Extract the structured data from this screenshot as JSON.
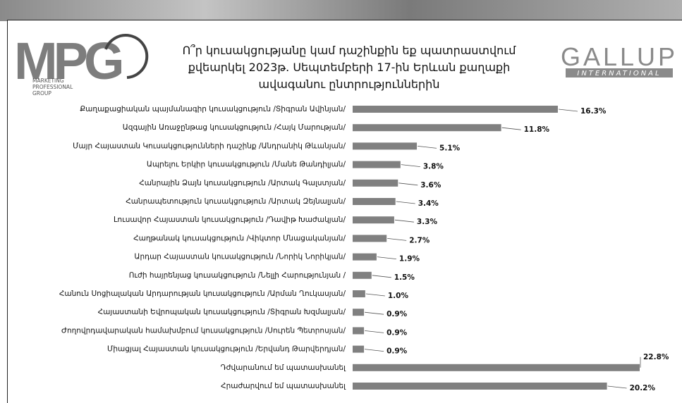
{
  "chart_data": {
    "type": "bar",
    "orientation": "horizontal",
    "title": "Ո՞ր կուսակցությանը կամ դաշինքին եք պատրաստվում քվեարկել 2023թ. Սեպտեմբերի 17-ին Երևան քաղաքի ավագանու ընտրություններին",
    "categories": [
      "Քաղաքացիական պայմանագիր կուսակցություն /Տիգրան Ավինյան/",
      "Ազգային Առաջընթաց կուսակցություն  /Հայկ Մարության/",
      "Մայր Հայաստան Կուսակցությունների դաշինք /Անդրանիկ Թևանյան/",
      "Ապրելու Երկիր կուսակցություն /Մանե Թանդիլյան/",
      "Հանրային Ձայն կուսակցություն /Արտակ Գալստյան/",
      "Հանրապետություն կուսակցություն /Արտակ Զեյնալյան/",
      "Լուսավոր Հայաստան կուսակցություն /Դավիթ Խաժակյան/",
      "Հաղթանակ կուսակցություն /Վիկտոր Մնացականյան/",
      "Արդար Հայաստան կուսակցություն /Նորիկ Նորիկյան/",
      "Ուժի հայրենյաց կուսակցություն /Նելլի Հարությունյան /",
      "Հանուն Սոցիալական Արդարության կուսակցություն /Արման Ղուկասյան/",
      "Հայաստանի Եվրոպական կուսակցություն /Տիգրան Խզմալյան/",
      "Ժողովրդավարական համախմբում կուսակցություն /Սուրեն Պետրոսյան/",
      "Միացյալ Հայաստան կուսակցություն /Երվանդ Թարվերդյան/",
      "Դժվարանում եմ պատասխանել",
      "Հրաժարվում եմ պատասխանել"
    ],
    "values": [
      16.3,
      11.8,
      5.1,
      3.8,
      3.6,
      3.4,
      3.3,
      2.7,
      1.9,
      1.5,
      1.0,
      0.9,
      0.9,
      0.9,
      22.8,
      20.2
    ],
    "value_labels": [
      "16.3%",
      "11.8%",
      "5.1%",
      "3.8%",
      "3.6%",
      "3.4%",
      "3.3%",
      "2.7%",
      "1.9%",
      "1.5%",
      "1.0%",
      "0.9%",
      "0.9%",
      "0.9%",
      "22.8%",
      "20.2%"
    ],
    "color": "#808080"
  },
  "logos": {
    "left": {
      "name": "MPG",
      "tagline": [
        "MARKETING",
        "PROFESSIONAL",
        "GROUP"
      ]
    },
    "right": {
      "name": "GALLUP",
      "tagline": "INTERNATIONAL"
    }
  }
}
